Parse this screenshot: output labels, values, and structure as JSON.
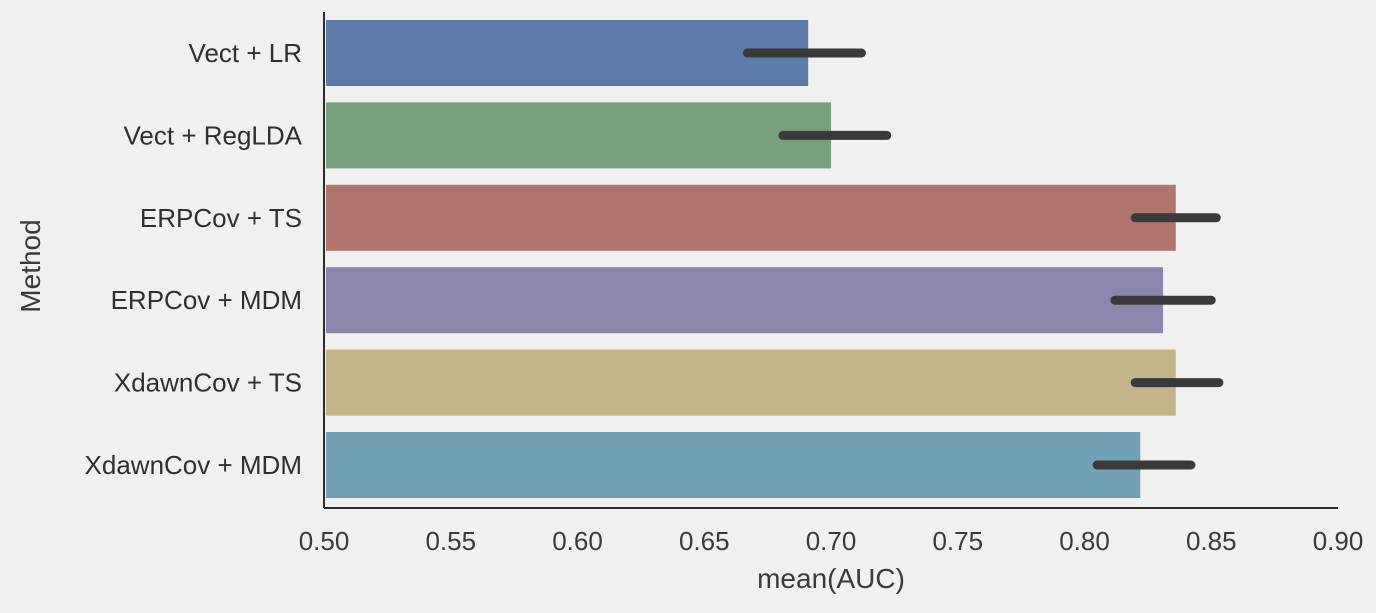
{
  "chart_data": {
    "type": "bar",
    "orientation": "horizontal",
    "title": "",
    "xlabel": "mean(AUC)",
    "ylabel": "Method",
    "xlim": [
      0.5,
      0.9
    ],
    "xticks": [
      "0.50",
      "0.55",
      "0.60",
      "0.65",
      "0.70",
      "0.75",
      "0.80",
      "0.85",
      "0.90"
    ],
    "grid": false,
    "categories": [
      "Vect + LR",
      "Vect + RegLDA",
      "ERPCov + TS",
      "ERPCov + MDM",
      "XdawnCov + TS",
      "XdawnCov + MDM"
    ],
    "values": [
      0.691,
      0.7,
      0.836,
      0.831,
      0.836,
      0.822
    ],
    "error_low": [
      0.667,
      0.681,
      0.82,
      0.812,
      0.82,
      0.805
    ],
    "error_high": [
      0.712,
      0.722,
      0.852,
      0.85,
      0.853,
      0.842
    ],
    "colors": [
      "#5c7ba8",
      "#78a07d",
      "#b0756c",
      "#8a87ad",
      "#c4b48c",
      "#72a1b6"
    ],
    "error_color": "#3a3a3a"
  }
}
